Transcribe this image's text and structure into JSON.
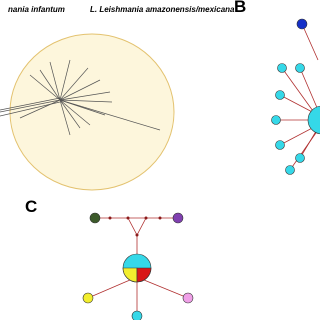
{
  "panels": {
    "a": {
      "label_left": "nania infantum",
      "label_right": "L. Leishmania amazonensis/mexicana"
    },
    "b": {
      "letter": "B"
    },
    "c": {
      "letter": "C"
    }
  }
}
